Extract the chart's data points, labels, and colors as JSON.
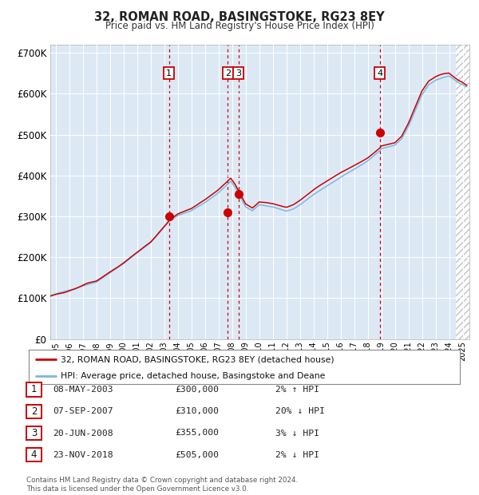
{
  "title": "32, ROMAN ROAD, BASINGSTOKE, RG23 8EY",
  "subtitle": "Price paid vs. HM Land Registry's House Price Index (HPI)",
  "bg_color": "#dce9f5",
  "hpi_color": "#7ab8e0",
  "price_color": "#cc0000",
  "marker_color": "#cc0000",
  "transactions": [
    {
      "num": 1,
      "x": 2003.354,
      "price": 300000,
      "label": "08-MAY-2003",
      "price_str": "£300,000",
      "hpi_str": "2% ↑ HPI"
    },
    {
      "num": 2,
      "x": 2007.685,
      "price": 310000,
      "label": "07-SEP-2007",
      "price_str": "£310,000",
      "hpi_str": "20% ↓ HPI"
    },
    {
      "num": 3,
      "x": 2008.47,
      "price": 355000,
      "label": "20-JUN-2008",
      "price_str": "£355,000",
      "hpi_str": "3% ↓ HPI"
    },
    {
      "num": 4,
      "x": 2018.897,
      "price": 505000,
      "label": "23-NOV-2018",
      "price_str": "£505,000",
      "hpi_str": "2% ↓ HPI"
    }
  ],
  "ylim": [
    0,
    720000
  ],
  "xlim_start": 1994.6,
  "xlim_end": 2025.5,
  "yticks": [
    0,
    100000,
    200000,
    300000,
    400000,
    500000,
    600000,
    700000
  ],
  "ytick_labels": [
    "£0",
    "£100K",
    "£200K",
    "£300K",
    "£400K",
    "£500K",
    "£600K",
    "£700K"
  ],
  "xticks": [
    1995,
    1996,
    1997,
    1998,
    1999,
    2000,
    2001,
    2002,
    2003,
    2004,
    2005,
    2006,
    2007,
    2008,
    2009,
    2010,
    2011,
    2012,
    2013,
    2014,
    2015,
    2016,
    2017,
    2018,
    2019,
    2020,
    2021,
    2022,
    2023,
    2024,
    2025
  ],
  "legend_line1": "32, ROMAN ROAD, BASINGSTOKE, RG23 8EY (detached house)",
  "legend_line2": "HPI: Average price, detached house, Basingstoke and Deane",
  "footnote": "Contains HM Land Registry data © Crown copyright and database right 2024.\nThis data is licensed under the Open Government Licence v3.0."
}
